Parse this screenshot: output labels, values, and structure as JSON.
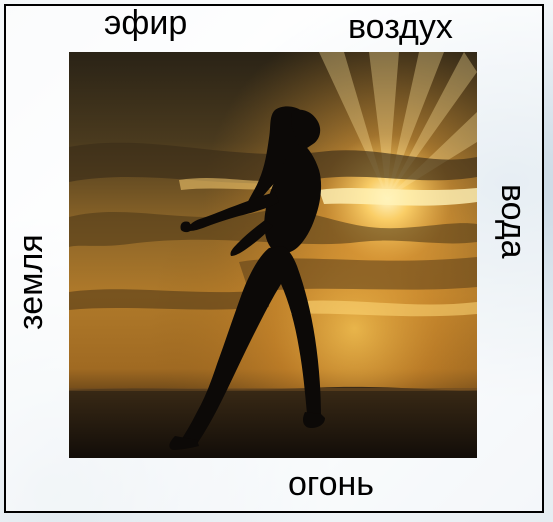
{
  "labels": {
    "top_left": "эфир",
    "top_right": "воздух",
    "right": "вода",
    "left": "земля",
    "bottom": "огонь"
  },
  "photo": {
    "subject": "woman-silhouette-leaning-back-at-sunset",
    "colors": {
      "sky_dark": "#2a2316",
      "sun_glow": "#ffd36a",
      "horizon": "#c98a2a",
      "ground": "#1a140d"
    }
  }
}
